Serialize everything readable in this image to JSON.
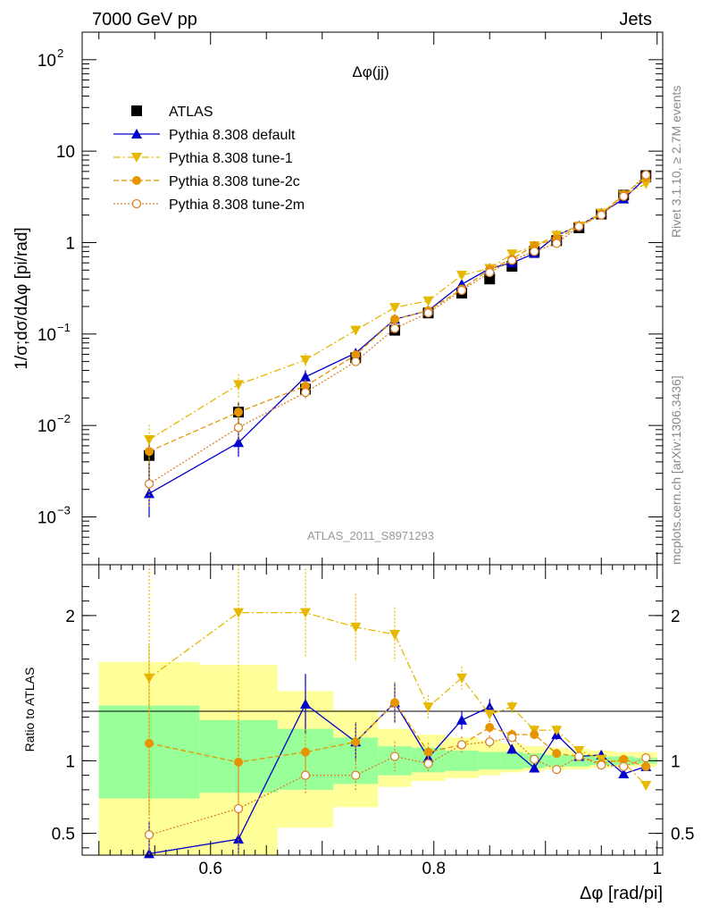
{
  "header": {
    "left": "7000 GeV pp",
    "right": "Jets"
  },
  "side_labels": {
    "rivet": "Rivet 3.1.10, ≥ 2.7M events",
    "mcplots": "mcplots.cern.ch [arXiv:1306.3436]"
  },
  "watermark": "ATLAS_2011_S8971293",
  "colors": {
    "atlas": "#000000",
    "default": "#0000cc",
    "tune1": "#e6b800",
    "tune2c": "#e69500",
    "tune2m": "#d9822b",
    "band_green": "#99ff99",
    "band_yellow": "#ffff99"
  },
  "chart_data": [
    {
      "type": "line",
      "title": "Δφ(jj)",
      "xlabel": "",
      "ylabel": "1/σ;dσ/dΔφ [pi/rad]",
      "yscale": "log",
      "xlim": [
        0.485,
        1.005
      ],
      "ylim": [
        0.0003,
        200
      ],
      "yticks": [
        {
          "v": 0.001,
          "base": "10",
          "exp": "−3"
        },
        {
          "v": 0.01,
          "base": "10",
          "exp": "−2"
        },
        {
          "v": 0.1,
          "base": "10",
          "exp": "−1"
        },
        {
          "v": 1,
          "base": "1",
          "exp": ""
        },
        {
          "v": 10,
          "base": "10",
          "exp": ""
        },
        {
          "v": 100,
          "base": "10",
          "exp": "2"
        }
      ],
      "legend_position": "top-left",
      "x": [
        0.545,
        0.625,
        0.685,
        0.73,
        0.765,
        0.795,
        0.825,
        0.85,
        0.87,
        0.89,
        0.91,
        0.93,
        0.95,
        0.97,
        0.99
      ],
      "series": [
        {
          "name": "ATLAS",
          "marker": "square",
          "values": [
            0.0047,
            0.014,
            0.025,
            0.055,
            0.11,
            0.17,
            0.28,
            0.4,
            0.55,
            0.8,
            1.05,
            1.45,
            2.05,
            3.3,
            5.4
          ]
        },
        {
          "name": "Pythia 8.308 default",
          "marker": "triangle-up",
          "values": [
            0.0018,
            0.0065,
            0.034,
            0.062,
            0.145,
            0.18,
            0.35,
            0.52,
            0.6,
            0.76,
            1.2,
            1.53,
            2.1,
            3.0,
            5.1
          ]
        },
        {
          "name": "Pythia 8.308 tune-1",
          "marker": "triangle-down",
          "values": [
            0.007,
            0.028,
            0.052,
            0.11,
            0.195,
            0.23,
            0.44,
            0.52,
            0.75,
            0.92,
            1.2,
            1.52,
            2.1,
            3.3,
            4.4
          ]
        },
        {
          "name": "Pythia 8.308 tune-2c",
          "marker": "circle",
          "values": [
            0.0052,
            0.014,
            0.027,
            0.059,
            0.145,
            0.18,
            0.31,
            0.51,
            0.66,
            0.93,
            1.1,
            1.5,
            2.05,
            3.35,
            5.15
          ]
        },
        {
          "name": "Pythia 8.308 tune-2m",
          "marker": "open-circle",
          "values": [
            0.0023,
            0.0095,
            0.023,
            0.05,
            0.115,
            0.17,
            0.3,
            0.47,
            0.64,
            0.8,
            0.98,
            1.5,
            2.0,
            3.2,
            5.5
          ]
        }
      ]
    },
    {
      "type": "line",
      "xlabel": "Δφ [rad/pi]",
      "ylabel": "Ratio to ATLAS",
      "xlim": [
        0.485,
        1.005
      ],
      "ylim": [
        0.35,
        2.35
      ],
      "xticks": [
        {
          "v": 0.6,
          "label": "0.6"
        },
        {
          "v": 0.8,
          "label": "0.8"
        },
        {
          "v": 1.0,
          "label": "1"
        }
      ],
      "yticks": [
        {
          "v": 0.5,
          "label": "0.5"
        },
        {
          "v": 1,
          "label": "1"
        },
        {
          "v": 2,
          "label": "2"
        }
      ],
      "bins": [
        0.5,
        0.59,
        0.66,
        0.71,
        0.75,
        0.78,
        0.81,
        0.84,
        0.86,
        0.88,
        0.9,
        0.92,
        0.94,
        0.96,
        0.98,
        1.0
      ],
      "band_green": [
        [
          0.74,
          1.38
        ],
        [
          0.78,
          1.28
        ],
        [
          0.8,
          1.22
        ],
        [
          0.84,
          1.16
        ],
        [
          0.9,
          1.1
        ],
        [
          0.92,
          1.09
        ],
        [
          0.93,
          1.07
        ],
        [
          0.94,
          1.06
        ],
        [
          0.94,
          1.06
        ],
        [
          0.95,
          1.05
        ],
        [
          0.96,
          1.04
        ],
        [
          0.96,
          1.04
        ],
        [
          0.97,
          1.03
        ],
        [
          0.97,
          1.03
        ],
        [
          0.98,
          1.02
        ]
      ],
      "band_yellow": [
        [
          0.35,
          1.68
        ],
        [
          0.35,
          1.66
        ],
        [
          0.54,
          1.48
        ],
        [
          0.68,
          1.35
        ],
        [
          0.82,
          1.22
        ],
        [
          0.86,
          1.18
        ],
        [
          0.88,
          1.16
        ],
        [
          0.9,
          1.14
        ],
        [
          0.92,
          1.12
        ],
        [
          0.93,
          1.1
        ],
        [
          0.94,
          1.09
        ],
        [
          0.94,
          1.08
        ],
        [
          0.95,
          1.07
        ],
        [
          0.96,
          1.06
        ],
        [
          0.96,
          1.06
        ]
      ],
      "x": [
        0.545,
        0.625,
        0.685,
        0.73,
        0.765,
        0.795,
        0.825,
        0.85,
        0.87,
        0.89,
        0.91,
        0.93,
        0.95,
        0.97,
        0.99
      ],
      "series": [
        {
          "name": "Pythia 8.308 default",
          "marker": "triangle-up",
          "values": [
            0.36,
            0.46,
            1.39,
            1.13,
            1.4,
            1.02,
            1.28,
            1.37,
            1.08,
            0.95,
            1.18,
            1.03,
            1.04,
            0.91,
            0.96
          ]
        },
        {
          "name": "Pythia 8.308 tune-1",
          "marker": "triangle-down",
          "values": [
            1.57,
            2.02,
            2.02,
            1.92,
            1.87,
            1.37,
            1.57,
            1.32,
            1.37,
            1.21,
            1.21,
            1.07,
            1.01,
            0.99,
            0.83
          ]
        },
        {
          "name": "Pythia 8.308 tune-2c",
          "marker": "circle",
          "values": [
            1.12,
            0.99,
            1.06,
            1.13,
            1.4,
            1.06,
            1.11,
            1.23,
            1.18,
            1.18,
            1.05,
            1.03,
            0.98,
            1.01,
            0.96
          ]
        },
        {
          "name": "Pythia 8.308 tune-2m",
          "marker": "open-circle",
          "values": [
            0.49,
            0.67,
            0.9,
            0.9,
            1.03,
            0.98,
            1.11,
            1.13,
            1.16,
            1.01,
            0.94,
            1.03,
            0.97,
            0.96,
            1.02
          ]
        }
      ]
    }
  ]
}
